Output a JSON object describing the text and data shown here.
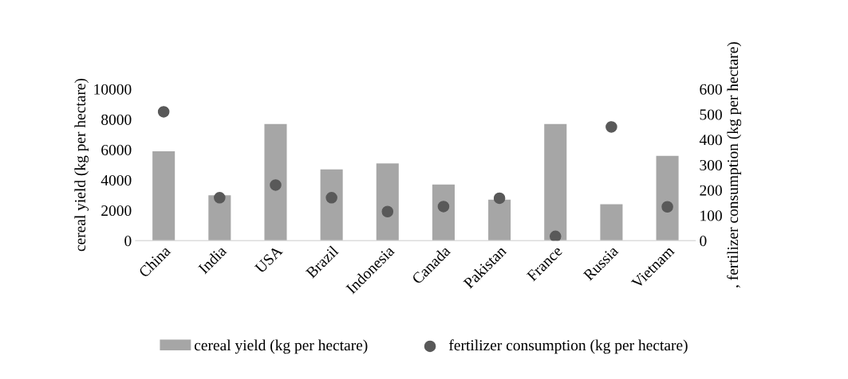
{
  "chart_data": {
    "type": "bar",
    "categories": [
      "China",
      "India",
      "USA",
      "Brazil",
      "Indonesia",
      "Canada",
      "Pakistan",
      "France",
      "Russia",
      "Vietnam"
    ],
    "series": [
      {
        "name": "cereal yield (kg per hectare)",
        "color": "#a6a6a6",
        "values": [
          5900,
          3000,
          7700,
          4700,
          5100,
          3700,
          2700,
          7700,
          2400,
          5600
        ]
      },
      {
        "name": "fertilizer consumption (kg per hectare)",
        "type": "scatter",
        "axis": "y2",
        "color": "#595959",
        "values": [
          510,
          170,
          220,
          170,
          115,
          135,
          168,
          17,
          450,
          134
        ]
      }
    ],
    "ylabel": "cereal yield (kg per hectare)",
    "y2label": ", fertilizer consumption (kg per hectare)",
    "ylim": [
      0,
      10000
    ],
    "yticks": [
      0,
      2000,
      4000,
      6000,
      8000,
      10000
    ],
    "y2lim": [
      0,
      600
    ],
    "y2ticks": [
      0,
      100,
      200,
      300,
      400,
      500,
      600
    ],
    "grid": false,
    "legend": "bottom",
    "marker": "circle"
  }
}
